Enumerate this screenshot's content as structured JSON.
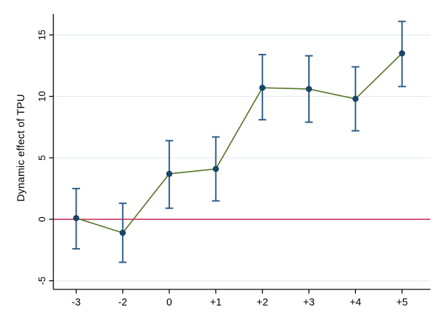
{
  "chart_data": {
    "type": "line",
    "subtype": "event-study-with-error-bars",
    "title": "",
    "xlabel": "",
    "ylabel": "Dynamic effect of TPU",
    "categories": [
      "-3",
      "-2",
      "0",
      "+1",
      "+2",
      "+3",
      "+4",
      "+5"
    ],
    "series": [
      {
        "name": "Dynamic effect of TPU",
        "values": [
          0.1,
          -1.1,
          3.7,
          4.1,
          10.7,
          10.6,
          9.8,
          13.5
        ],
        "ci_low": [
          -2.4,
          -3.5,
          0.9,
          1.5,
          8.1,
          7.9,
          7.2,
          10.8
        ],
        "ci_high": [
          2.5,
          1.3,
          6.4,
          6.7,
          13.4,
          13.3,
          12.4,
          16.1
        ]
      }
    ],
    "yticks": [
      -5,
      0,
      5,
      10,
      15
    ],
    "ylim": [
      -5.7,
      16.7
    ],
    "ref_line_y": 0,
    "grid": true,
    "legend": "none",
    "colors": {
      "line": "#56772a",
      "marker": "#1b4468",
      "error_bar": "#2b5a84",
      "reference_line": "#c81e4e",
      "gridline": "#e2edf2",
      "axis": "#000000",
      "background": "#ffffff"
    }
  }
}
